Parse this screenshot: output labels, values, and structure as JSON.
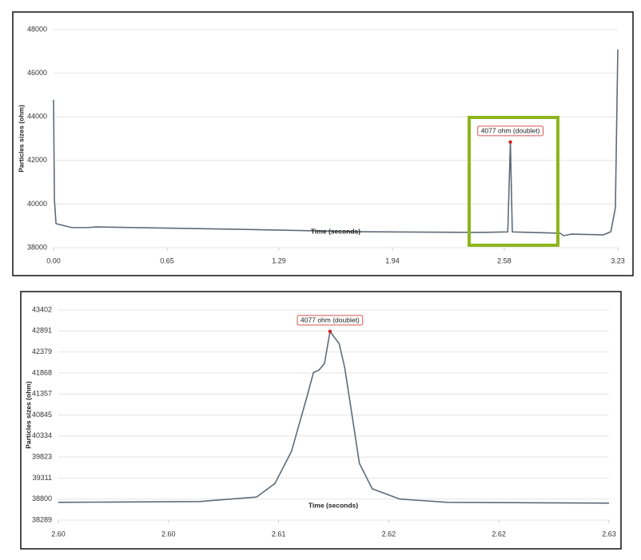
{
  "chart_data": [
    {
      "type": "line",
      "x_label": "Time (seconds)",
      "y_label": "Particles sizes (ohm)",
      "color": "#5f6b78",
      "grid": true,
      "x": [
        0,
        0.005,
        0.014,
        0.105,
        0.197,
        0.24,
        1.07,
        1.75,
        2.44,
        2.6,
        2.615,
        2.626,
        2.9,
        2.92,
        2.965,
        3.148,
        3.19,
        3.216,
        3.23
      ],
      "values": [
        44780,
        40200,
        39100,
        38920,
        38920,
        38950,
        38840,
        38730,
        38700,
        38720,
        42840,
        38720,
        38660,
        38550,
        38620,
        38590,
        38730,
        39830,
        47080
      ],
      "xlim": [
        0,
        3.23
      ],
      "xticks": [
        {
          "value": 0,
          "label": "0.00"
        },
        0.65,
        1.29,
        1.94,
        2.58,
        3.23
      ],
      "ylim": [
        38000,
        48000
      ],
      "yticks": [
        38000,
        40000,
        42000,
        44000,
        46000,
        48000
      ],
      "annotation": {
        "text": "4077 ohm (doublet)",
        "x": 2.615,
        "y": 42840
      }
    },
    {
      "type": "line",
      "x_label": "Time (seconds)",
      "y_label": "Particles sizes (ohm)",
      "color": "#5f6b78",
      "grid": true,
      "x": [
        2.598,
        2.6057,
        2.6088,
        2.6098,
        2.6107,
        2.6115,
        2.6119,
        2.6122,
        2.6125,
        2.6128,
        2.6133,
        2.6136,
        2.614,
        2.6144,
        2.6151,
        2.6166,
        2.6192,
        2.628
      ],
      "values": [
        38720,
        38740,
        38850,
        39180,
        39960,
        41220,
        41880,
        41940,
        42100,
        42880,
        42580,
        42000,
        40840,
        39670,
        39050,
        38800,
        38720,
        38700
      ],
      "xlim": [
        2.598,
        2.628
      ],
      "xticks": [
        {
          "value": 2.598,
          "label": "2.60"
        },
        {
          "value": 2.604,
          "label": "2.60"
        },
        2.61,
        {
          "value": 2.616,
          "label": "2.62"
        },
        {
          "value": 2.622,
          "label": "2.62"
        },
        {
          "value": 2.628,
          "label": "2.63"
        }
      ],
      "ylim": [
        38289,
        43402
      ],
      "yticks": [
        38289,
        38800,
        39311,
        39823,
        40334,
        40845,
        41357,
        41868,
        42379,
        42891,
        43402
      ],
      "annotation": {
        "text": "4077 ohm (doublet)",
        "x": 2.6128,
        "y": 42880
      }
    }
  ]
}
